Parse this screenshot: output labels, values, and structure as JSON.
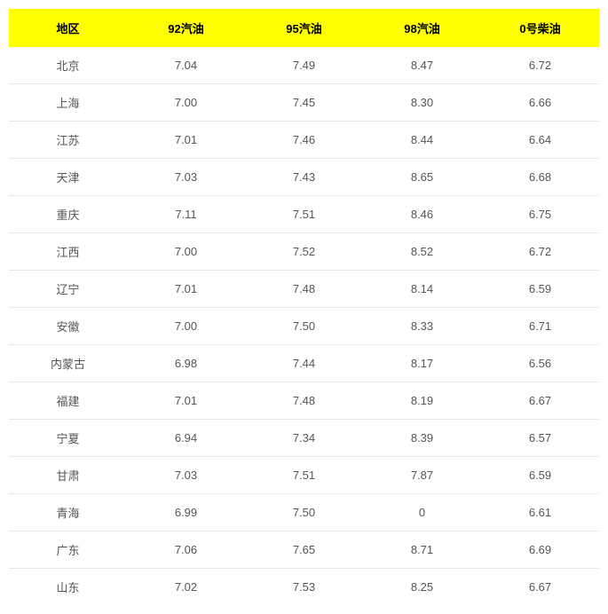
{
  "table": {
    "type": "table",
    "header_bg": "#ffff00",
    "header_color": "#000000",
    "cell_color": "#555555",
    "border_color": "#e8e8e8",
    "font_size_header": 13,
    "font_size_cell": 13,
    "columns": [
      "地区",
      "92汽油",
      "95汽油",
      "98汽油",
      "0号柴油"
    ],
    "rows": [
      [
        "北京",
        "7.04",
        "7.49",
        "8.47",
        "6.72"
      ],
      [
        "上海",
        "7.00",
        "7.45",
        "8.30",
        "6.66"
      ],
      [
        "江苏",
        "7.01",
        "7.46",
        "8.44",
        "6.64"
      ],
      [
        "天津",
        "7.03",
        "7.43",
        "8.65",
        "6.68"
      ],
      [
        "重庆",
        "7.11",
        "7.51",
        "8.46",
        "6.75"
      ],
      [
        "江西",
        "7.00",
        "7.52",
        "8.52",
        "6.72"
      ],
      [
        "辽宁",
        "7.01",
        "7.48",
        "8.14",
        "6.59"
      ],
      [
        "安徽",
        "7.00",
        "7.50",
        "8.33",
        "6.71"
      ],
      [
        "内蒙古",
        "6.98",
        "7.44",
        "8.17",
        "6.56"
      ],
      [
        "福建",
        "7.01",
        "7.48",
        "8.19",
        "6.67"
      ],
      [
        "宁夏",
        "6.94",
        "7.34",
        "8.39",
        "6.57"
      ],
      [
        "甘肃",
        "7.03",
        "7.51",
        "7.87",
        "6.59"
      ],
      [
        "青海",
        "6.99",
        "7.50",
        "0",
        "6.61"
      ],
      [
        "广东",
        "7.06",
        "7.65",
        "8.71",
        "6.69"
      ],
      [
        "山东",
        "7.02",
        "7.53",
        "8.25",
        "6.67"
      ]
    ]
  }
}
